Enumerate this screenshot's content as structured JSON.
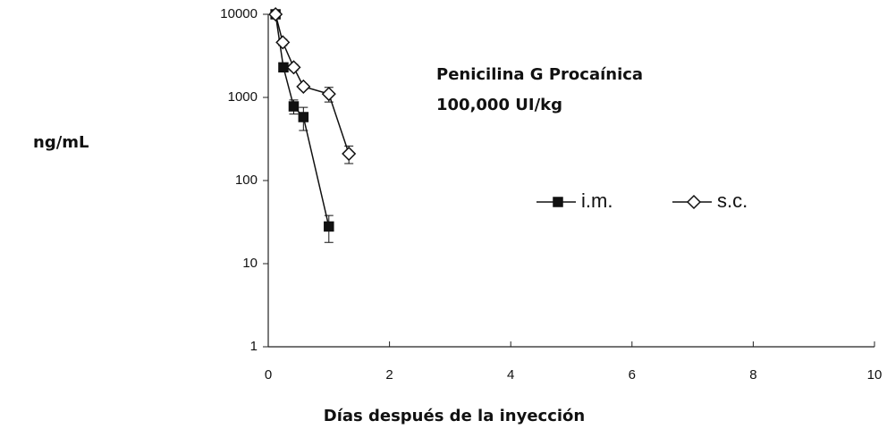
{
  "chart_data": {
    "type": "line",
    "ylabel": "ng/mL",
    "xlabel": "Días después de la inyección",
    "annotations": [
      "Penicilina G Procaínica",
      "100,000 UI/kg"
    ],
    "xlim": [
      0,
      10
    ],
    "xticks": [
      0,
      2,
      4,
      6,
      8,
      10
    ],
    "ylim": [
      1,
      10000
    ],
    "yticks": [
      1,
      10,
      100,
      1000,
      10000
    ],
    "log_y": true,
    "series": [
      {
        "name": "i.m.",
        "color": "#111111",
        "marker": "square",
        "x": [
          0.12,
          0.25,
          0.42,
          0.58,
          1.0
        ],
        "values": [
          10000,
          2300,
          780,
          580,
          28
        ],
        "errors": [
          500,
          200,
          150,
          180,
          10
        ]
      },
      {
        "name": "s.c.",
        "color": "#111111",
        "marker": "diamond",
        "x": [
          0.12,
          0.24,
          0.42,
          0.58,
          1.0,
          1.33
        ],
        "values": [
          10000,
          4600,
          2300,
          1350,
          1100,
          210
        ],
        "errors": [
          500,
          400,
          200,
          100,
          220,
          50
        ]
      }
    ]
  }
}
